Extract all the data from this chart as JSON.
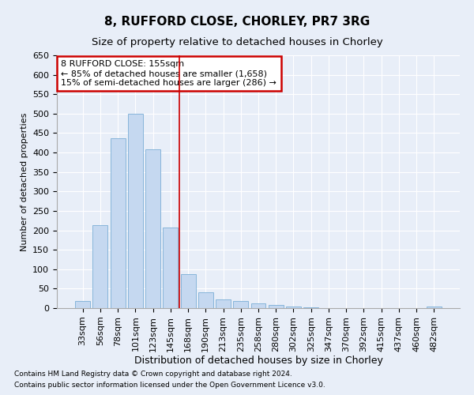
{
  "title": "8, RUFFORD CLOSE, CHORLEY, PR7 3RG",
  "subtitle": "Size of property relative to detached houses in Chorley",
  "xlabel": "Distribution of detached houses by size in Chorley",
  "ylabel": "Number of detached properties",
  "categories": [
    "33sqm",
    "56sqm",
    "78sqm",
    "101sqm",
    "123sqm",
    "145sqm",
    "168sqm",
    "190sqm",
    "213sqm",
    "235sqm",
    "258sqm",
    "280sqm",
    "302sqm",
    "325sqm",
    "347sqm",
    "370sqm",
    "392sqm",
    "415sqm",
    "437sqm",
    "460sqm",
    "482sqm"
  ],
  "values": [
    18,
    213,
    437,
    500,
    408,
    207,
    87,
    40,
    22,
    18,
    13,
    8,
    5,
    2,
    1,
    1,
    0,
    0,
    0,
    0,
    5
  ],
  "bar_color": "#c5d8f0",
  "bar_edge_color": "#7aaed6",
  "vline_x": 5.5,
  "vline_color": "#cc0000",
  "annotation_box_text": "8 RUFFORD CLOSE: 155sqm\n← 85% of detached houses are smaller (1,658)\n15% of semi-detached houses are larger (286) →",
  "annotation_box_color": "#cc0000",
  "bg_color": "#e8eef8",
  "plot_bg_color": "#e8eef8",
  "ylim": [
    0,
    650
  ],
  "yticks": [
    0,
    50,
    100,
    150,
    200,
    250,
    300,
    350,
    400,
    450,
    500,
    550,
    600,
    650
  ],
  "footnote1": "Contains HM Land Registry data © Crown copyright and database right 2024.",
  "footnote2": "Contains public sector information licensed under the Open Government Licence v3.0.",
  "title_fontsize": 11,
  "subtitle_fontsize": 9.5,
  "xlabel_fontsize": 9,
  "ylabel_fontsize": 8,
  "tick_fontsize": 8,
  "annot_fontsize": 8,
  "footnote_fontsize": 6.5
}
